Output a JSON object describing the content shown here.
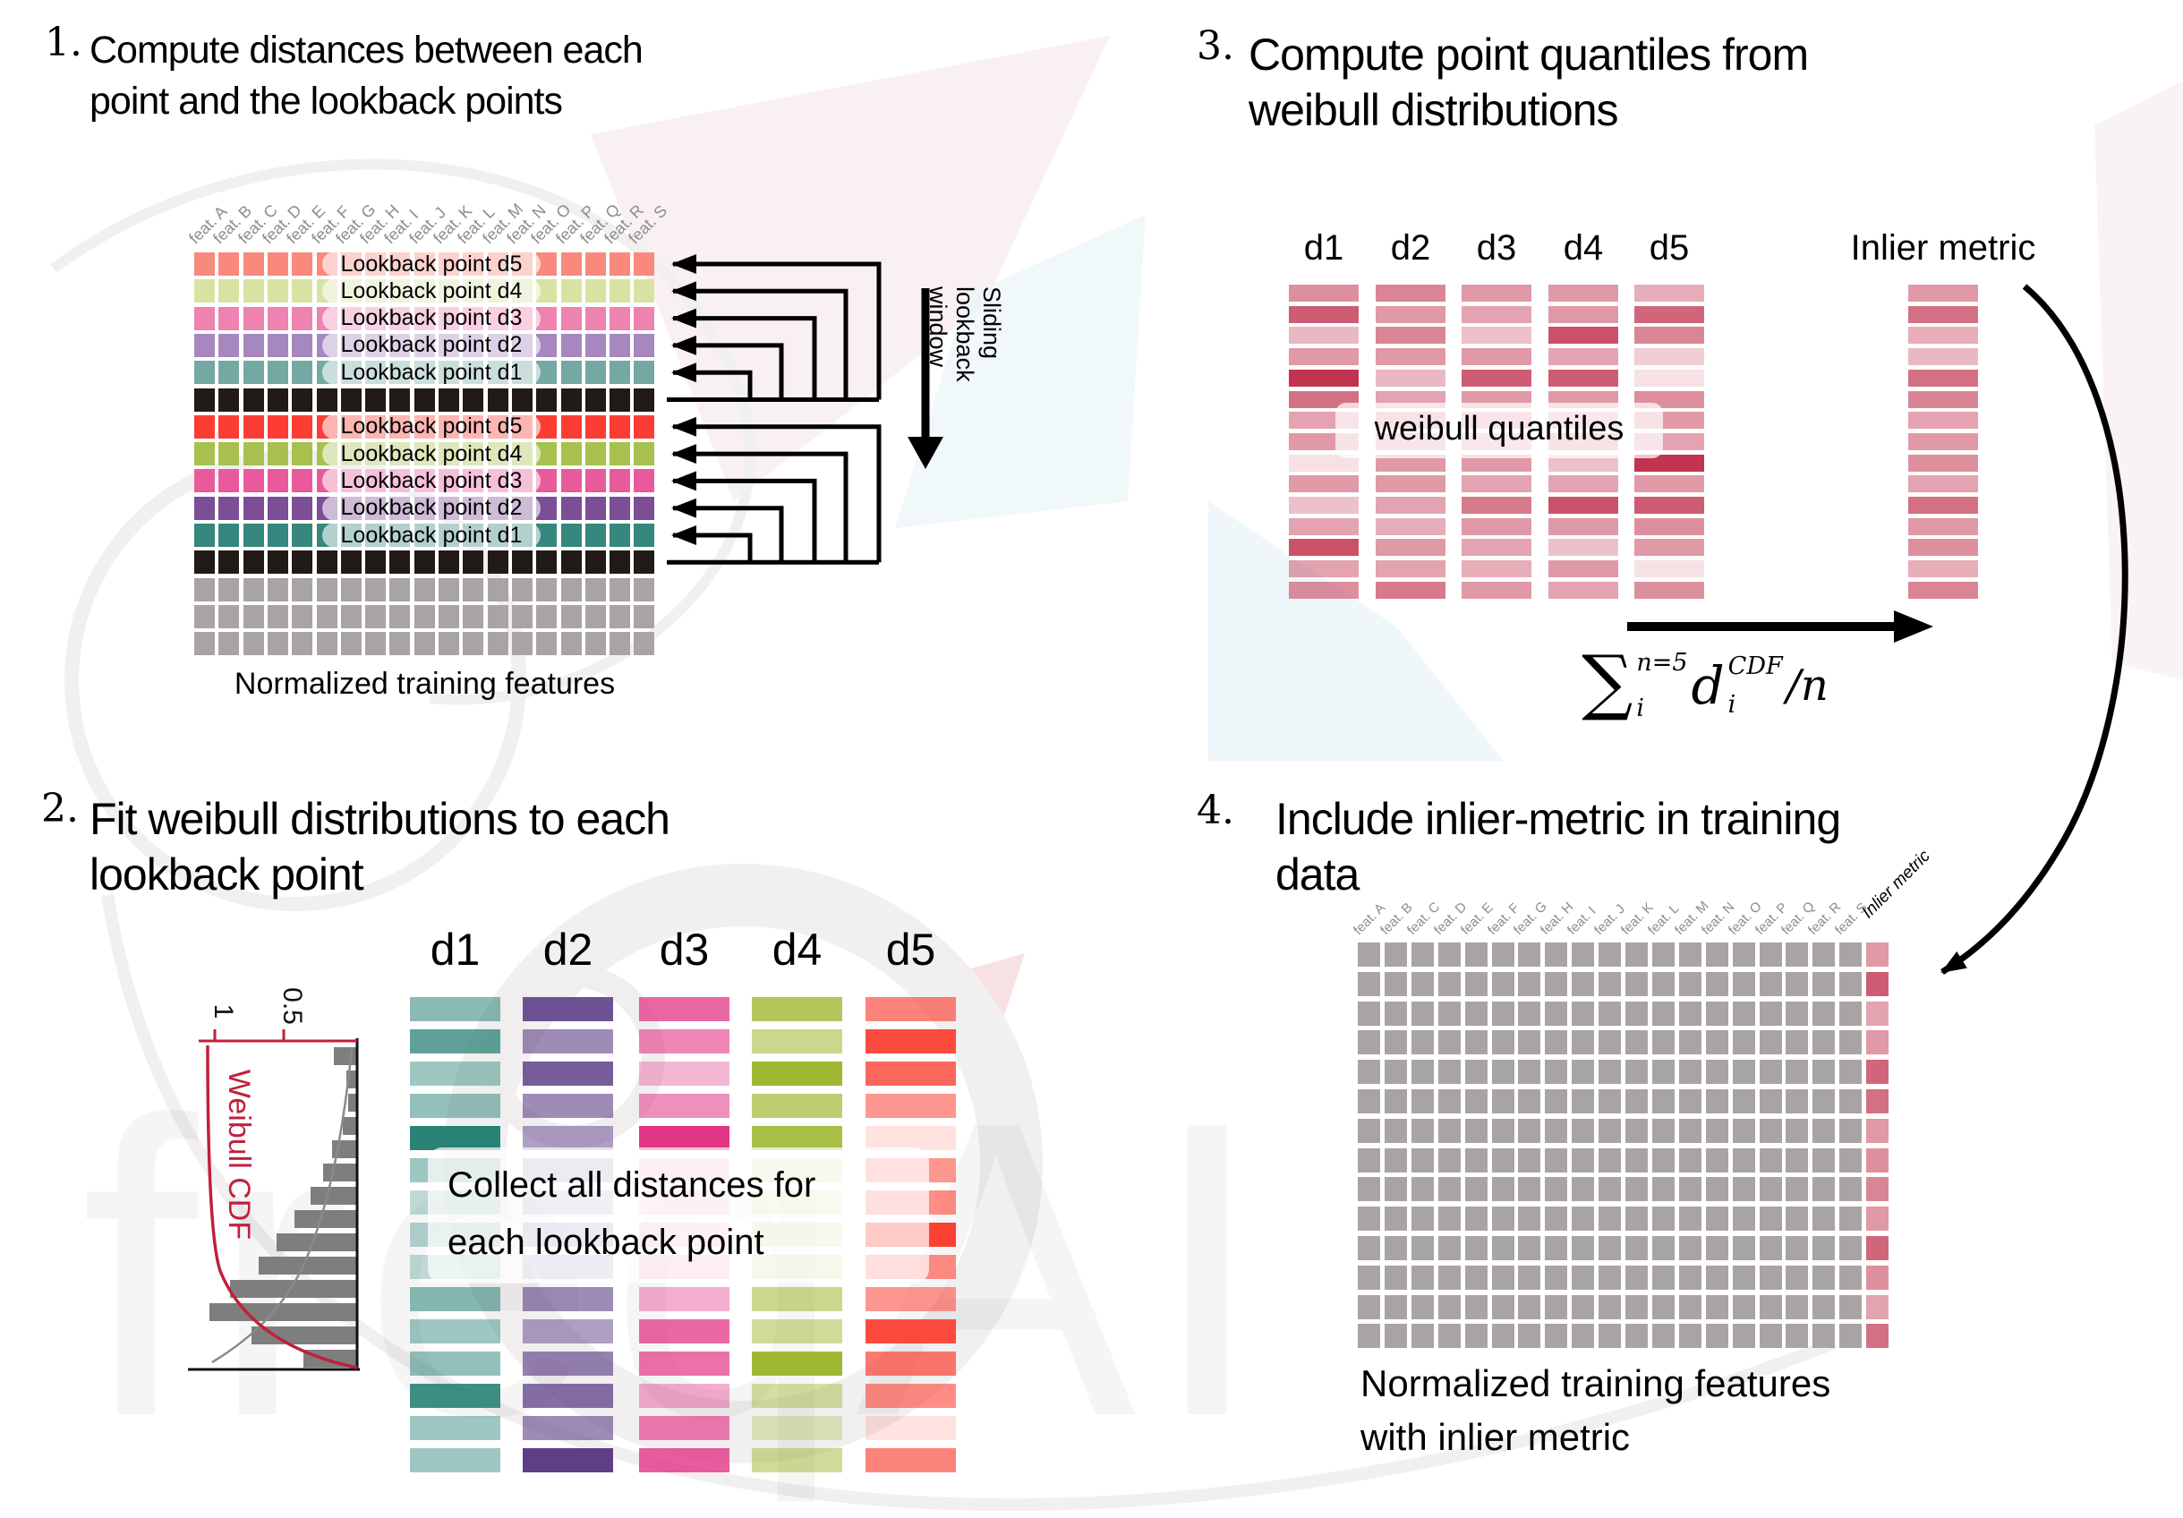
{
  "watermark": {
    "logo_text": "freqAI"
  },
  "p1": {
    "number": "1.",
    "title_line1": "Compute distances between each",
    "title_line2": "point and the lookback points",
    "features": [
      "feat. A",
      "feat. B",
      "feat. C",
      "feat. D",
      "feat. E",
      "feat. F",
      "feat. G",
      "feat. H",
      "feat. I",
      "feat. J",
      "feat. K",
      "feat. L",
      "feat. M",
      "feat. N",
      "feat. O",
      "feat. P",
      "feat. Q",
      "feat. R",
      "feat. S"
    ],
    "lookback_labels": [
      "Lookback point d5",
      "Lookback point d4",
      "Lookback point d3",
      "Lookback point d2",
      "Lookback point d1"
    ],
    "caption": "Normalized training features",
    "sliding_lines": [
      "Sliding",
      "lookback",
      "window"
    ],
    "block1_colors": [
      "#f9897d",
      "#d8e2a3",
      "#ee82b0",
      "#a787bf",
      "#74a8a3"
    ],
    "block2_colors": [
      "#fb3d33",
      "#a8c04d",
      "#e95a9c",
      "#7c4e95",
      "#36877d"
    ],
    "black": "#211a16",
    "gray": "#a9a4a4"
  },
  "p2": {
    "number": "2.",
    "title_line1": "Fit weibull distributions to each",
    "title_line2": "lookback point",
    "d_labels": [
      "d1",
      "d2",
      "d3",
      "d4",
      "d5"
    ],
    "overlay_line1": "Collect all distances for",
    "overlay_line2": "each lookback point",
    "col_bases": [
      "#2a8277",
      "#5e3f87",
      "#e23585",
      "#9fb832",
      "#fb4134"
    ],
    "col_alphas": [
      [
        0.55,
        0.75,
        0.45,
        0.5,
        1,
        0.45,
        0.3,
        0.35,
        0.3,
        0.55,
        0.45,
        0.5,
        0.9,
        0.45,
        0.45
      ],
      [
        0.9,
        0.6,
        0.85,
        0.6,
        0.5,
        0.4,
        0.3,
        0.4,
        0.35,
        0.6,
        0.5,
        0.65,
        0.75,
        0.6,
        1
      ],
      [
        0.75,
        0.6,
        0.35,
        0.55,
        1,
        0.25,
        0.2,
        0.25,
        0.3,
        0.4,
        0.75,
        0.7,
        0.4,
        0.65,
        0.8
      ],
      [
        0.8,
        0.55,
        1,
        0.7,
        0.9,
        0.3,
        0.25,
        0.3,
        0.35,
        0.55,
        0.5,
        1,
        0.45,
        0.3,
        0.5
      ],
      [
        0.65,
        0.95,
        0.8,
        0.55,
        0.15,
        0.55,
        0.6,
        1,
        0.6,
        0.55,
        0.95,
        0.7,
        0.6,
        0.15,
        0.65
      ]
    ],
    "weibull": {
      "label": "Weibull CDF",
      "tick1": "1",
      "tick2": "0.5",
      "curve_color": "#c0203c",
      "bar_color": "#7e7e7e",
      "bar_lengths": [
        26,
        12,
        10,
        16,
        28,
        38,
        52,
        70,
        90,
        110,
        142,
        165,
        118,
        60
      ]
    }
  },
  "p3": {
    "number": "3.",
    "title_line1": "Compute point quantiles from",
    "title_line2": "weibull distributions",
    "d_labels": [
      "d1",
      "d2",
      "d3",
      "d4",
      "d5"
    ],
    "inlier_label": "Inlier metric",
    "overlay": "weibull quantiles",
    "base": "#c2334f",
    "col_alphas": [
      [
        0.55,
        0.8,
        0.35,
        0.5,
        1,
        0.7,
        0.45,
        0.5,
        0.15,
        0.5,
        0.3,
        0.45,
        0.85,
        0.45,
        0.55
      ],
      [
        0.6,
        0.5,
        0.6,
        0.5,
        0.35,
        0.45,
        0.5,
        0.45,
        0.5,
        0.5,
        0.45,
        0.4,
        0.5,
        0.45,
        0.65
      ],
      [
        0.5,
        0.45,
        0.3,
        0.5,
        0.8,
        0.5,
        0.45,
        0.4,
        0.5,
        0.45,
        0.65,
        0.5,
        0.45,
        0.4,
        0.5
      ],
      [
        0.5,
        0.5,
        0.85,
        0.45,
        0.8,
        0.5,
        0.4,
        0.5,
        0.3,
        0.45,
        0.85,
        0.5,
        0.3,
        0.5,
        0.45
      ],
      [
        0.4,
        0.75,
        0.6,
        0.25,
        0.15,
        0.55,
        0.5,
        0.45,
        1,
        0.5,
        0.8,
        0.55,
        0.5,
        0.15,
        0.55
      ]
    ],
    "inlier_alphas": [
      0.5,
      0.7,
      0.4,
      0.35,
      0.7,
      0.6,
      0.45,
      0.5,
      0.55,
      0.45,
      0.7,
      0.5,
      0.55,
      0.4,
      0.6
    ],
    "formula": {
      "sum": "∑",
      "sum_sup": "n=5",
      "sum_sub": "i",
      "d": "d",
      "d_sup": "CDF",
      "d_sub": "i",
      "tail": "/n"
    }
  },
  "p4": {
    "number": "4.",
    "title_line1": "Include inlier-metric in training",
    "title_line2": "data",
    "features": [
      "feat. A",
      "feat. B",
      "feat. C",
      "feat. D",
      "feat. E",
      "feat. F",
      "feat. G",
      "feat. H",
      "feat. I",
      "feat. J",
      "feat. K",
      "feat. L",
      "feat. M",
      "feat. N",
      "feat. O",
      "feat. P",
      "feat. Q",
      "feat. R",
      "feat. S"
    ],
    "inlier_label": "Inlier metric",
    "caption_line1": "Normalized training features",
    "caption_line2": "with inlier metric",
    "gray": "#a9a4a4",
    "inlier_base": "#c2334f",
    "inlier_alphas": [
      0.5,
      0.8,
      0.45,
      0.5,
      0.75,
      0.7,
      0.5,
      0.55,
      0.6,
      0.5,
      0.75,
      0.55,
      0.45,
      0.7
    ]
  }
}
